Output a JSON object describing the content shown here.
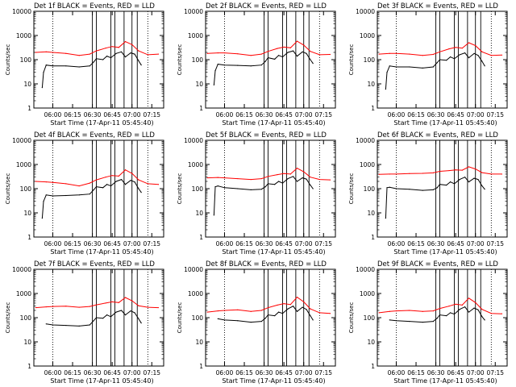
{
  "figure": {
    "title_suffix": "BLACK = Events, RED = LLD",
    "xlabel": "Start Time (17-Apr-11 05:45:40)",
    "ylabel": "Counts/sec",
    "x_ticks": [
      "06:00",
      "06:15",
      "06:30",
      "06:45",
      "07:00",
      "07:15"
    ],
    "y_ticks": [
      "1",
      "10",
      "100",
      "1000",
      "10000"
    ],
    "colors": {
      "events": "#000000",
      "lld": "#ff0000",
      "axes": "#000000"
    }
  },
  "chart_data": [
    {
      "type": "line",
      "title": "Det 1f BLACK = Events, RED = LLD",
      "detector": "Det 1f",
      "xlabel": "Start Time (17-Apr-11 05:45:40)",
      "ylabel": "Counts/sec",
      "xlim": [
        "05:45:40",
        "07:24"
      ],
      "ylim": [
        1,
        10000
      ],
      "y_scale": "log",
      "dotted_vlines": [
        "06:00",
        "07:12"
      ],
      "solid_vlines": [
        "06:30",
        "06:33",
        "06:44",
        "06:47",
        "06:54",
        "07:00",
        "07:04"
      ],
      "series": [
        {
          "name": "Events",
          "x": [
            "05:52",
            "05:53",
            "05:55",
            "06:00",
            "06:10",
            "06:20",
            "06:28",
            "06:31",
            "06:33",
            "06:38",
            "06:41",
            "06:44",
            "06:48",
            "06:52",
            "06:55",
            "06:59",
            "07:02",
            "07:05",
            "07:07"
          ],
          "values": [
            7,
            30,
            60,
            55,
            55,
            50,
            55,
            80,
            110,
            100,
            140,
            120,
            180,
            210,
            130,
            190,
            170,
            90,
            60
          ]
        },
        {
          "name": "LLD",
          "x": [
            "05:47",
            "05:55",
            "06:00",
            "06:10",
            "06:20",
            "06:28",
            "06:33",
            "06:40",
            "06:45",
            "06:50",
            "06:55",
            "07:00",
            "07:05",
            "07:12",
            "07:20"
          ],
          "values": [
            200,
            210,
            200,
            180,
            150,
            170,
            230,
            300,
            350,
            320,
            560,
            420,
            230,
            160,
            170
          ]
        }
      ]
    },
    {
      "type": "line",
      "title": "Det 2f BLACK = Events, RED = LLD",
      "detector": "Det 2f",
      "xlabel": "Start Time (17-Apr-11 05:45:40)",
      "ylabel": "Counts/sec",
      "xlim": [
        "05:45:40",
        "07:24"
      ],
      "ylim": [
        1,
        10000
      ],
      "y_scale": "log",
      "dotted_vlines": [
        "06:00",
        "07:12"
      ],
      "solid_vlines": [
        "06:30",
        "06:33",
        "06:44",
        "06:47",
        "06:54",
        "07:00",
        "07:04"
      ],
      "series": [
        {
          "name": "Events",
          "x": [
            "05:52",
            "05:53",
            "05:55",
            "06:00",
            "06:10",
            "06:20",
            "06:28",
            "06:31",
            "06:33",
            "06:38",
            "06:41",
            "06:44",
            "06:48",
            "06:52",
            "06:55",
            "06:59",
            "07:02",
            "07:05",
            "07:07"
          ],
          "values": [
            9,
            35,
            65,
            60,
            58,
            55,
            60,
            85,
            120,
            105,
            150,
            130,
            200,
            230,
            140,
            210,
            180,
            100,
            70
          ]
        },
        {
          "name": "LLD",
          "x": [
            "05:47",
            "05:55",
            "06:00",
            "06:10",
            "06:20",
            "06:28",
            "06:33",
            "06:40",
            "06:45",
            "06:50",
            "06:55",
            "07:00",
            "07:05",
            "07:12",
            "07:20"
          ],
          "values": [
            180,
            190,
            190,
            175,
            150,
            170,
            220,
            290,
            330,
            310,
            580,
            400,
            220,
            160,
            165
          ]
        }
      ]
    },
    {
      "type": "line",
      "title": "Det 3f BLACK = Events, RED = LLD",
      "detector": "Det 3f",
      "xlabel": "Start Time (17-Apr-11 05:45:40)",
      "ylabel": "Counts/sec",
      "xlim": [
        "05:45:40",
        "07:24"
      ],
      "ylim": [
        1,
        10000
      ],
      "y_scale": "log",
      "dotted_vlines": [
        "06:00",
        "07:12"
      ],
      "solid_vlines": [
        "06:30",
        "06:33",
        "06:44",
        "06:47",
        "06:54",
        "07:00",
        "07:04"
      ],
      "series": [
        {
          "name": "Events",
          "x": [
            "05:52",
            "05:53",
            "05:55",
            "06:00",
            "06:10",
            "06:20",
            "06:28",
            "06:31",
            "06:33",
            "06:38",
            "06:41",
            "06:44",
            "06:48",
            "06:52",
            "06:55",
            "06:59",
            "07:02",
            "07:05",
            "07:07"
          ],
          "values": [
            6,
            30,
            55,
            50,
            50,
            45,
            50,
            75,
            100,
            95,
            130,
            110,
            160,
            190,
            120,
            180,
            150,
            85,
            55
          ]
        },
        {
          "name": "LLD",
          "x": [
            "05:47",
            "05:55",
            "06:00",
            "06:10",
            "06:20",
            "06:28",
            "06:33",
            "06:40",
            "06:45",
            "06:50",
            "06:55",
            "07:00",
            "07:05",
            "07:12",
            "07:20"
          ],
          "values": [
            170,
            180,
            180,
            170,
            150,
            165,
            210,
            280,
            320,
            300,
            500,
            380,
            210,
            150,
            155
          ]
        }
      ]
    },
    {
      "type": "line",
      "title": "Det 4f BLACK = Events, RED = LLD",
      "detector": "Det 4f",
      "xlabel": "Start Time (17-Apr-11 05:45:40)",
      "ylabel": "Counts/sec",
      "xlim": [
        "05:45:40",
        "07:24"
      ],
      "ylim": [
        1,
        10000
      ],
      "y_scale": "log",
      "dotted_vlines": [
        "06:00",
        "07:12"
      ],
      "solid_vlines": [
        "06:30",
        "06:33",
        "06:44",
        "06:47",
        "06:54",
        "07:00",
        "07:04"
      ],
      "series": [
        {
          "name": "Events",
          "x": [
            "05:52",
            "05:53",
            "05:55",
            "06:00",
            "06:10",
            "06:20",
            "06:28",
            "06:31",
            "06:33",
            "06:38",
            "06:41",
            "06:44",
            "06:48",
            "06:52",
            "06:55",
            "06:59",
            "07:02",
            "07:05",
            "07:07"
          ],
          "values": [
            6,
            30,
            55,
            50,
            52,
            55,
            60,
            90,
            120,
            110,
            150,
            130,
            200,
            240,
            150,
            220,
            190,
            100,
            70
          ]
        },
        {
          "name": "LLD",
          "x": [
            "05:47",
            "05:55",
            "06:00",
            "06:10",
            "06:20",
            "06:28",
            "06:33",
            "06:40",
            "06:45",
            "06:50",
            "06:55",
            "07:00",
            "07:05",
            "07:12",
            "07:20"
          ],
          "values": [
            200,
            190,
            180,
            160,
            130,
            170,
            230,
            300,
            350,
            330,
            600,
            430,
            230,
            160,
            150
          ]
        }
      ]
    },
    {
      "type": "line",
      "title": "Det 5f BLACK = Events, RED = LLD",
      "detector": "Det 5f",
      "xlabel": "Start Time (17-Apr-11 05:45:40)",
      "ylabel": "Counts/sec",
      "xlim": [
        "05:45:40",
        "07:24"
      ],
      "ylim": [
        1,
        10000
      ],
      "y_scale": "log",
      "dotted_vlines": [
        "06:00",
        "07:12"
      ],
      "solid_vlines": [
        "06:30",
        "06:33",
        "06:44",
        "06:47",
        "06:54",
        "07:00",
        "07:04"
      ],
      "series": [
        {
          "name": "Events",
          "x": [
            "05:52",
            "05:53",
            "05:55",
            "06:00",
            "06:10",
            "06:20",
            "06:28",
            "06:31",
            "06:33",
            "06:38",
            "06:41",
            "06:44",
            "06:48",
            "06:52",
            "06:55",
            "06:59",
            "07:02",
            "07:05",
            "07:07"
          ],
          "values": [
            8,
            120,
            130,
            110,
            100,
            90,
            95,
            120,
            160,
            150,
            200,
            170,
            260,
            320,
            200,
            280,
            250,
            140,
            100
          ]
        },
        {
          "name": "LLD",
          "x": [
            "05:47",
            "05:55",
            "06:00",
            "06:10",
            "06:20",
            "06:28",
            "06:33",
            "06:40",
            "06:45",
            "06:50",
            "06:55",
            "07:00",
            "07:05",
            "07:12",
            "07:20"
          ],
          "values": [
            280,
            290,
            280,
            260,
            240,
            260,
            320,
            380,
            420,
            400,
            700,
            500,
            300,
            240,
            230
          ]
        }
      ]
    },
    {
      "type": "line",
      "title": "Det 6f BLACK = Events, RED = LLD",
      "detector": "Det 6f",
      "xlabel": "Start Time (17-Apr-11 05:45:40)",
      "ylabel": "Counts/sec",
      "xlim": [
        "05:45:40",
        "07:24"
      ],
      "ylim": [
        1,
        10000
      ],
      "y_scale": "log",
      "dotted_vlines": [
        "06:00",
        "07:12"
      ],
      "solid_vlines": [
        "06:30",
        "06:33",
        "06:44",
        "06:47",
        "06:54",
        "07:00",
        "07:04"
      ],
      "series": [
        {
          "name": "Events",
          "x": [
            "05:52",
            "05:53",
            "05:55",
            "06:00",
            "06:10",
            "06:20",
            "06:28",
            "06:31",
            "06:33",
            "06:38",
            "06:41",
            "06:44",
            "06:48",
            "06:52",
            "06:55",
            "06:59",
            "07:02",
            "07:05",
            "07:07"
          ],
          "values": [
            6,
            110,
            115,
            100,
            95,
            85,
            90,
            110,
            150,
            140,
            190,
            160,
            240,
            300,
            190,
            270,
            240,
            130,
            95
          ]
        },
        {
          "name": "LLD",
          "x": [
            "05:47",
            "05:55",
            "06:00",
            "06:10",
            "06:20",
            "06:28",
            "06:33",
            "06:40",
            "06:45",
            "06:50",
            "06:55",
            "07:00",
            "07:05",
            "07:12",
            "07:20"
          ],
          "values": [
            390,
            400,
            400,
            420,
            430,
            450,
            520,
            560,
            600,
            580,
            800,
            650,
            460,
            400,
            400
          ]
        }
      ]
    },
    {
      "type": "line",
      "title": "Det 7f BLACK = Events, RED = LLD",
      "detector": "Det 7f",
      "xlabel": "Start Time (17-Apr-11 05:45:40)",
      "ylabel": "Counts/sec",
      "xlim": [
        "05:45:40",
        "07:24"
      ],
      "ylim": [
        1,
        10000
      ],
      "y_scale": "log",
      "dotted_vlines": [
        "06:00",
        "07:12"
      ],
      "solid_vlines": [
        "06:30",
        "06:33",
        "06:44",
        "06:47",
        "06:54",
        "07:00",
        "07:04"
      ],
      "series": [
        {
          "name": "Events",
          "x": [
            "05:55",
            "06:00",
            "06:10",
            "06:20",
            "06:28",
            "06:31",
            "06:33",
            "06:38",
            "06:41",
            "06:44",
            "06:48",
            "06:52",
            "06:55",
            "06:59",
            "07:02",
            "07:05",
            "07:07"
          ],
          "values": [
            55,
            50,
            48,
            45,
            50,
            75,
            100,
            95,
            130,
            110,
            170,
            200,
            130,
            190,
            160,
            90,
            60
          ]
        },
        {
          "name": "LLD",
          "x": [
            "05:47",
            "05:55",
            "06:00",
            "06:10",
            "06:20",
            "06:28",
            "06:33",
            "06:40",
            "06:45",
            "06:50",
            "06:55",
            "07:00",
            "07:05",
            "07:12",
            "07:20"
          ],
          "values": [
            260,
            280,
            290,
            300,
            270,
            290,
            340,
            400,
            450,
            420,
            680,
            500,
            310,
            270,
            260
          ]
        }
      ]
    },
    {
      "type": "line",
      "title": "Det 8f BLACK = Events, RED = LLD",
      "detector": "Det 8f",
      "xlabel": "Start Time (17-Apr-11 05:45:40)",
      "ylabel": "Counts/sec",
      "xlim": [
        "05:45:40",
        "07:24"
      ],
      "ylim": [
        1,
        10000
      ],
      "y_scale": "log",
      "dotted_vlines": [
        "06:00",
        "07:12"
      ],
      "solid_vlines": [
        "06:30",
        "06:33",
        "06:44",
        "06:47",
        "06:54",
        "07:00",
        "07:04"
      ],
      "series": [
        {
          "name": "Events",
          "x": [
            "05:55",
            "06:00",
            "06:10",
            "06:20",
            "06:28",
            "06:31",
            "06:33",
            "06:38",
            "06:41",
            "06:44",
            "06:48",
            "06:52",
            "06:55",
            "06:59",
            "07:02",
            "07:05",
            "07:07"
          ],
          "values": [
            90,
            80,
            75,
            65,
            70,
            95,
            130,
            120,
            170,
            150,
            230,
            300,
            180,
            270,
            220,
            120,
            80
          ]
        },
        {
          "name": "LLD",
          "x": [
            "05:47",
            "05:55",
            "06:00",
            "06:10",
            "06:20",
            "06:28",
            "06:33",
            "06:40",
            "06:45",
            "06:50",
            "06:55",
            "07:00",
            "07:05",
            "07:12",
            "07:20"
          ],
          "values": [
            170,
            190,
            200,
            210,
            180,
            200,
            260,
            330,
            380,
            350,
            700,
            450,
            230,
            160,
            150
          ]
        }
      ]
    },
    {
      "type": "line",
      "title": "Det 9f BLACK = Events, RED = LLD",
      "detector": "Det 9f",
      "xlabel": "Start Time (17-Apr-11 05:45:40)",
      "ylabel": "Counts/sec",
      "xlim": [
        "05:45:40",
        "07:24"
      ],
      "ylim": [
        1,
        10000
      ],
      "y_scale": "log",
      "dotted_vlines": [
        "06:00",
        "07:12"
      ],
      "solid_vlines": [
        "06:30",
        "06:33",
        "06:44",
        "06:47",
        "06:54",
        "07:00",
        "07:04"
      ],
      "series": [
        {
          "name": "Events",
          "x": [
            "05:55",
            "06:00",
            "06:10",
            "06:20",
            "06:28",
            "06:31",
            "06:33",
            "06:38",
            "06:41",
            "06:44",
            "06:48",
            "06:52",
            "06:55",
            "06:59",
            "07:02",
            "07:05",
            "07:07"
          ],
          "values": [
            80,
            75,
            70,
            65,
            70,
            95,
            130,
            120,
            160,
            140,
            220,
            280,
            170,
            250,
            210,
            110,
            80
          ]
        },
        {
          "name": "LLD",
          "x": [
            "05:47",
            "05:55",
            "06:00",
            "06:10",
            "06:20",
            "06:28",
            "06:33",
            "06:40",
            "06:45",
            "06:50",
            "06:55",
            "07:00",
            "07:05",
            "07:12",
            "07:20"
          ],
          "values": [
            160,
            180,
            190,
            200,
            180,
            190,
            240,
            300,
            360,
            330,
            640,
            420,
            220,
            150,
            145
          ]
        }
      ]
    }
  ]
}
